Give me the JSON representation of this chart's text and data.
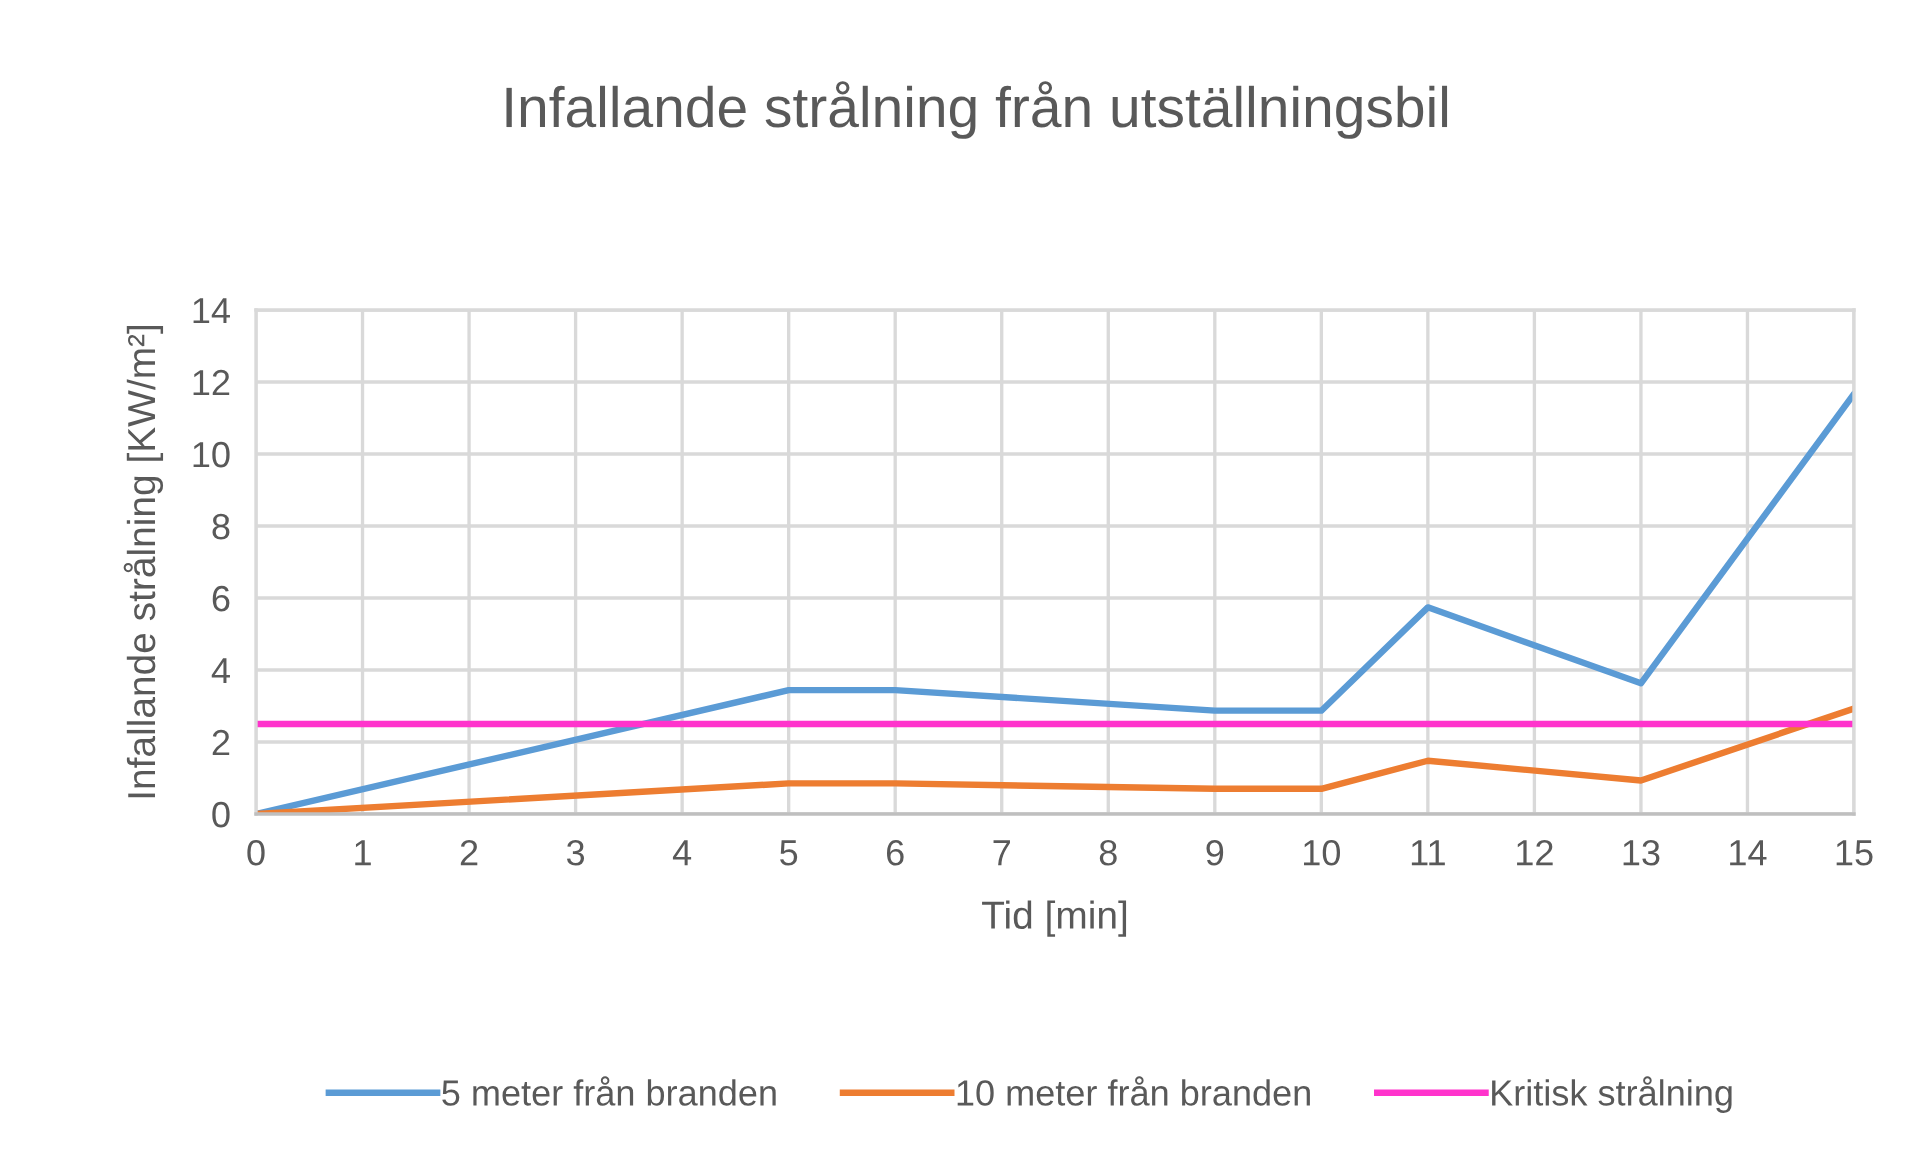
{
  "chart_data": {
    "type": "line",
    "title": "Infallande strålning från utställningsbil",
    "xlabel": "Tid [min]",
    "ylabel": "Infallande strålning [KW/m²]",
    "series": [
      {
        "name": "5 meter från branden",
        "color": "#5b9bd5",
        "x": [
          0,
          5,
          6,
          9,
          10,
          11,
          13,
          15
        ],
        "values": [
          0,
          3.44,
          3.44,
          2.87,
          2.87,
          5.74,
          3.63,
          11.67
        ]
      },
      {
        "name": "10 meter från branden",
        "color": "#ed7d31",
        "x": [
          0,
          5,
          6,
          9,
          10,
          11,
          13,
          15
        ],
        "values": [
          0,
          0.85,
          0.85,
          0.7,
          0.7,
          1.48,
          0.93,
          2.93
        ]
      },
      {
        "name": "Kritisk strålning",
        "color": "#ff33cc",
        "x": [
          0,
          15
        ],
        "values": [
          2.5,
          2.5
        ]
      }
    ],
    "xlim": [
      0,
      15
    ],
    "xticks": [
      0,
      1,
      2,
      3,
      4,
      5,
      6,
      7,
      8,
      9,
      10,
      11,
      12,
      13,
      14,
      15
    ],
    "ylim": [
      0,
      14
    ],
    "yticks": [
      0,
      2,
      4,
      6,
      8,
      10,
      12,
      14
    ],
    "grid": true,
    "legend": "bottom"
  }
}
